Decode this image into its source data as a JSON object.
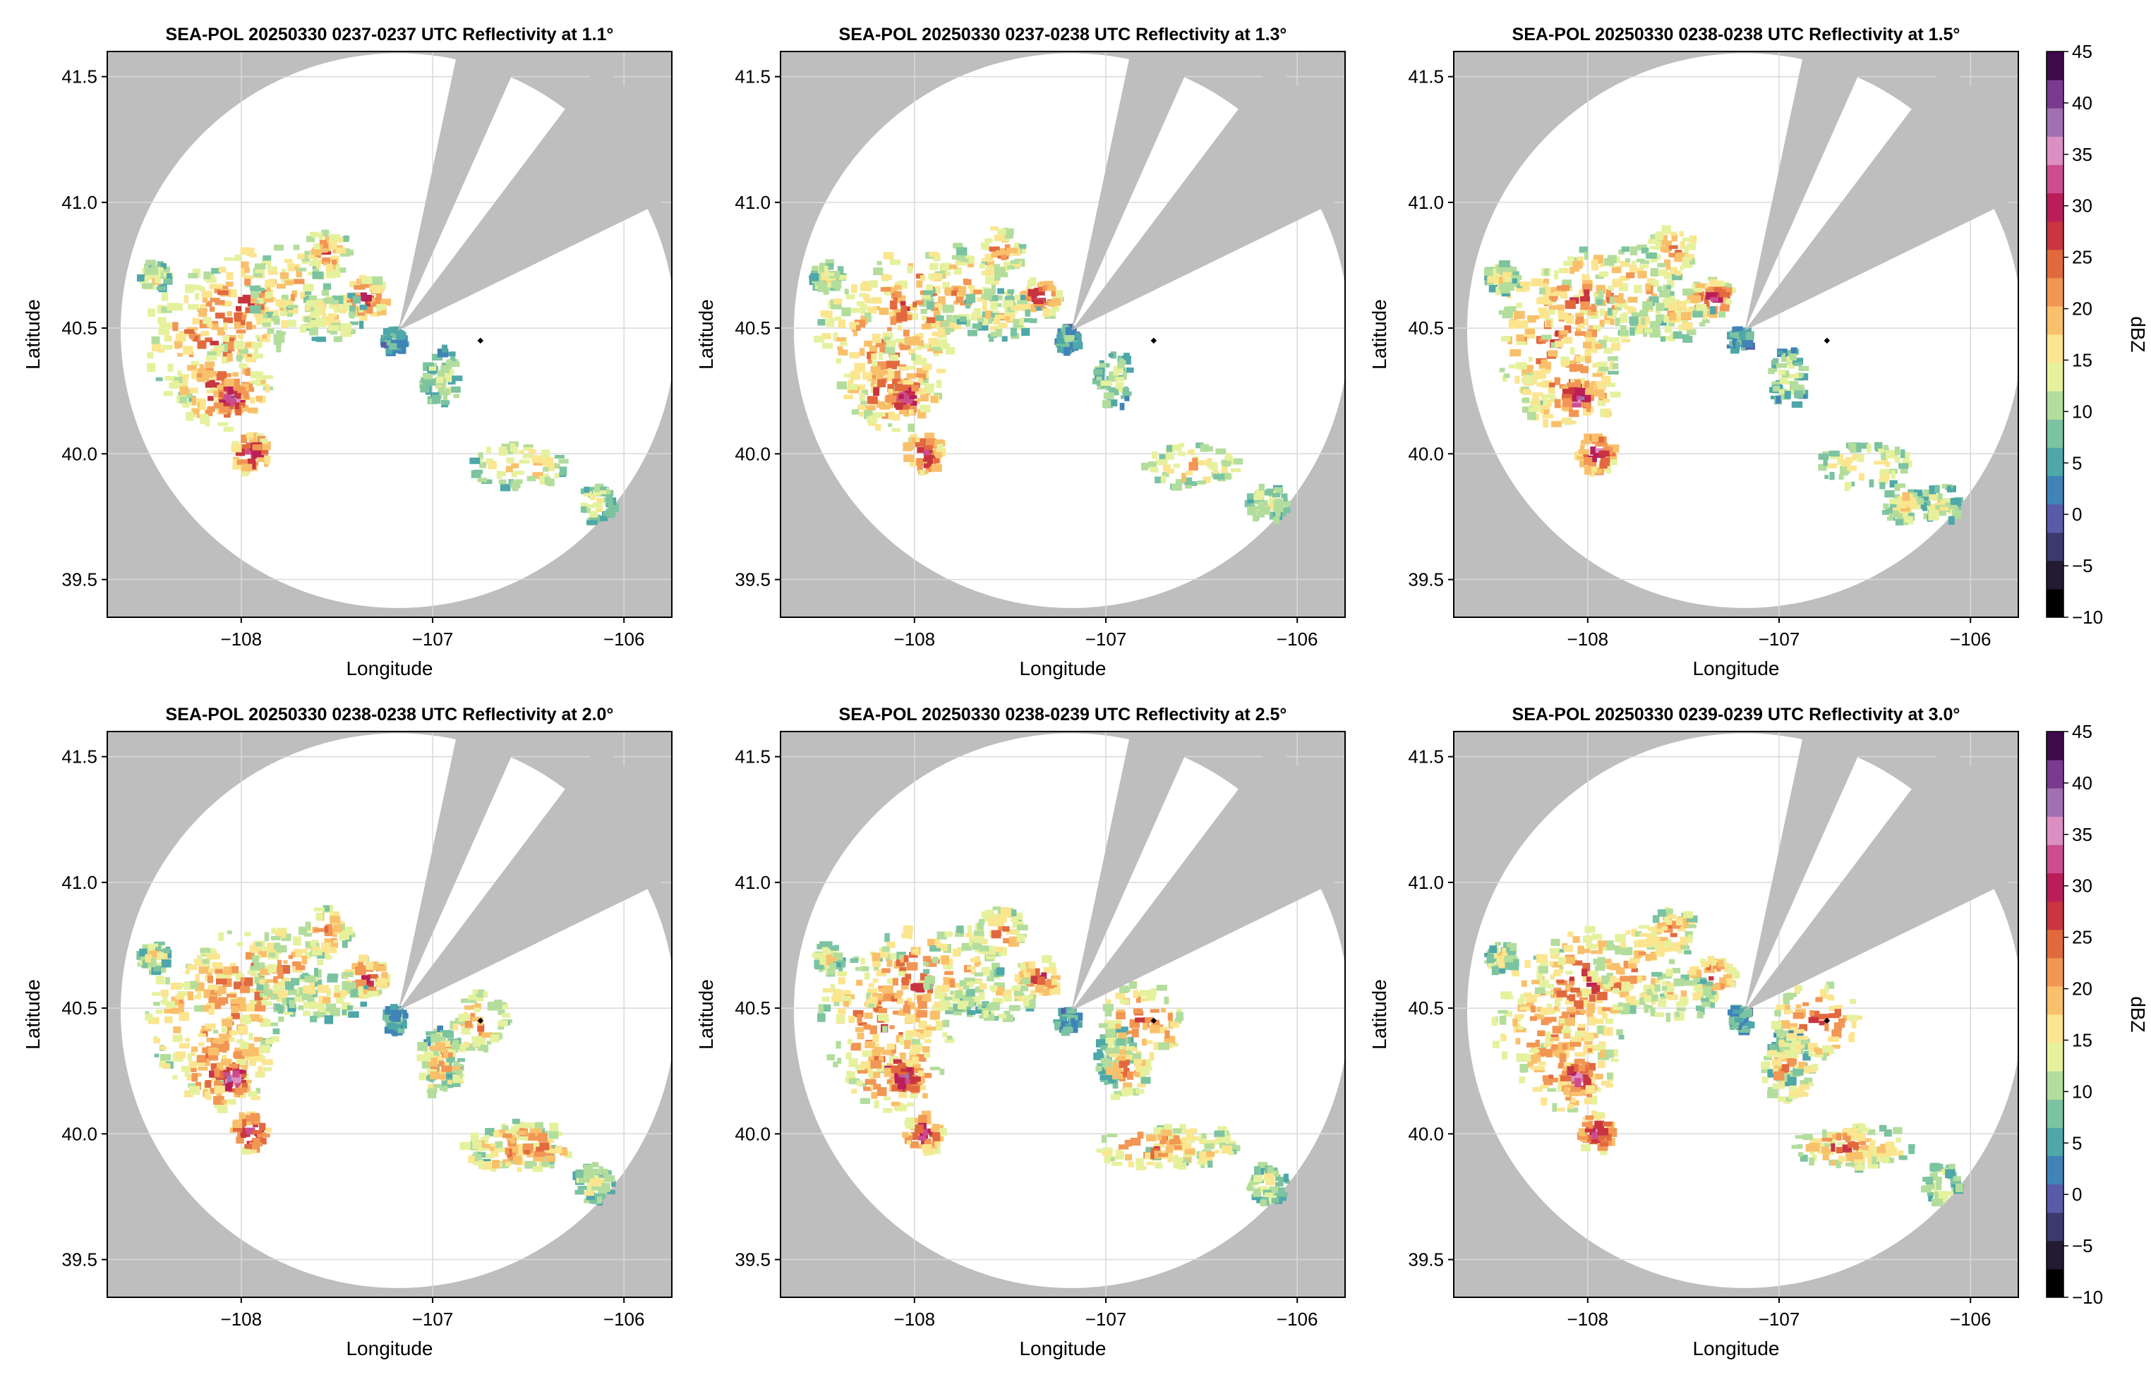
{
  "figure": {
    "colorbar_label": "dBZ",
    "colorbar_ticks": [
      -10,
      -5,
      0,
      5,
      10,
      15,
      20,
      25,
      30,
      35,
      40,
      45
    ],
    "colorbar_tick_labels": [
      "−10",
      "−5",
      "0",
      "5",
      "10",
      "15",
      "20",
      "25",
      "30",
      "35",
      "40",
      "45"
    ],
    "colors": {
      "outside_range": "#bebebe",
      "background": "#ffffff",
      "gridline": "#d9d9d9",
      "radar_marker": "#000000",
      "colormap": [
        "#000000",
        "#231a33",
        "#3a3a6e",
        "#5a5ba8",
        "#3f83b7",
        "#4ea7a8",
        "#7cc3a0",
        "#b3dd9c",
        "#e6f19d",
        "#fbe58f",
        "#f9c06b",
        "#f29654",
        "#e2693e",
        "#c8353f",
        "#b91e59",
        "#cd4c8f",
        "#dc8fc4",
        "#a26fb3",
        "#7a3a90",
        "#3e0a4b"
      ]
    }
  },
  "chart_data": [
    {
      "type": "heatmap",
      "title": "SEA-POL 20250330 0237-0237 UTC Reflectivity at 1.1°",
      "xlabel": "Longitude",
      "ylabel": "Latitude",
      "xlim": [
        -108.7,
        -105.75
      ],
      "ylim": [
        39.35,
        41.6
      ],
      "xticks": [
        -108,
        -107,
        -106
      ],
      "xtick_labels": [
        "−108",
        "−107",
        "−106"
      ],
      "yticks": [
        39.5,
        40.0,
        40.5,
        41.0,
        41.5
      ],
      "ytick_labels": [
        "39.5",
        "40.0",
        "40.5",
        "41.0",
        "41.5"
      ],
      "grid": true,
      "colorbar": false,
      "radar_center": [
        -107.18,
        40.49
      ],
      "range_radius_deg": 1.45,
      "blocked_sectors_deg": [
        [
          12,
          24
        ],
        [
          37,
          64
        ]
      ],
      "marker": [
        -106.75,
        40.45
      ],
      "value_range": [
        -10,
        45
      ]
    },
    {
      "type": "heatmap",
      "title": "SEA-POL 20250330 0237-0238 UTC Reflectivity at 1.3°",
      "xlabel": "Longitude",
      "ylabel": "Latitude",
      "xlim": [
        -108.7,
        -105.75
      ],
      "ylim": [
        39.35,
        41.6
      ],
      "xticks": [
        -108,
        -107,
        -106
      ],
      "xtick_labels": [
        "−108",
        "−107",
        "−106"
      ],
      "yticks": [
        39.5,
        40.0,
        40.5,
        41.0,
        41.5
      ],
      "ytick_labels": [
        "39.5",
        "40.0",
        "40.5",
        "41.0",
        "41.5"
      ],
      "grid": true,
      "colorbar": false,
      "radar_center": [
        -107.18,
        40.49
      ],
      "range_radius_deg": 1.45,
      "blocked_sectors_deg": [
        [
          12,
          24
        ],
        [
          37,
          64
        ]
      ],
      "marker": [
        -106.75,
        40.45
      ],
      "value_range": [
        -10,
        45
      ]
    },
    {
      "type": "heatmap",
      "title": "SEA-POL 20250330 0238-0238 UTC Reflectivity at 1.5°",
      "xlabel": "Longitude",
      "ylabel": "Latitude",
      "xlim": [
        -108.7,
        -105.75
      ],
      "ylim": [
        39.35,
        41.6
      ],
      "xticks": [
        -108,
        -107,
        -106
      ],
      "xtick_labels": [
        "−108",
        "−107",
        "−106"
      ],
      "yticks": [
        39.5,
        40.0,
        40.5,
        41.0,
        41.5
      ],
      "ytick_labels": [
        "39.5",
        "40.0",
        "40.5",
        "41.0",
        "41.5"
      ],
      "grid": true,
      "colorbar": true,
      "radar_center": [
        -107.18,
        40.49
      ],
      "range_radius_deg": 1.45,
      "blocked_sectors_deg": [
        [
          12,
          24
        ],
        [
          37,
          64
        ]
      ],
      "marker": [
        -106.75,
        40.45
      ],
      "value_range": [
        -10,
        45
      ]
    },
    {
      "type": "heatmap",
      "title": "SEA-POL 20250330 0238-0238 UTC Reflectivity at 2.0°",
      "xlabel": "Longitude",
      "ylabel": "Latitude",
      "xlim": [
        -108.7,
        -105.75
      ],
      "ylim": [
        39.35,
        41.6
      ],
      "xticks": [
        -108,
        -107,
        -106
      ],
      "xtick_labels": [
        "−108",
        "−107",
        "−106"
      ],
      "yticks": [
        39.5,
        40.0,
        40.5,
        41.0,
        41.5
      ],
      "ytick_labels": [
        "39.5",
        "40.0",
        "40.5",
        "41.0",
        "41.5"
      ],
      "grid": true,
      "colorbar": false,
      "radar_center": [
        -107.18,
        40.49
      ],
      "range_radius_deg": 1.45,
      "blocked_sectors_deg": [
        [
          12,
          24
        ],
        [
          37,
          64
        ]
      ],
      "marker": [
        -106.75,
        40.45
      ],
      "value_range": [
        -10,
        45
      ]
    },
    {
      "type": "heatmap",
      "title": "SEA-POL 20250330 0238-0239 UTC Reflectivity at 2.5°",
      "xlabel": "Longitude",
      "ylabel": "Latitude",
      "xlim": [
        -108.7,
        -105.75
      ],
      "ylim": [
        39.35,
        41.6
      ],
      "xticks": [
        -108,
        -107,
        -106
      ],
      "xtick_labels": [
        "−108",
        "−107",
        "−106"
      ],
      "yticks": [
        39.5,
        40.0,
        40.5,
        41.0,
        41.5
      ],
      "ytick_labels": [
        "39.5",
        "40.0",
        "40.5",
        "41.0",
        "41.5"
      ],
      "grid": true,
      "colorbar": false,
      "radar_center": [
        -107.18,
        40.49
      ],
      "range_radius_deg": 1.45,
      "blocked_sectors_deg": [
        [
          12,
          24
        ],
        [
          37,
          64
        ]
      ],
      "marker": [
        -106.75,
        40.45
      ],
      "value_range": [
        -10,
        45
      ]
    },
    {
      "type": "heatmap",
      "title": "SEA-POL 20250330 0239-0239 UTC Reflectivity at 3.0°",
      "xlabel": "Longitude",
      "ylabel": "Latitude",
      "xlim": [
        -108.7,
        -105.75
      ],
      "ylim": [
        39.35,
        41.6
      ],
      "xticks": [
        -108,
        -107,
        -106
      ],
      "xtick_labels": [
        "−108",
        "−107",
        "−106"
      ],
      "yticks": [
        39.5,
        40.0,
        40.5,
        41.0,
        41.5
      ],
      "ytick_labels": [
        "39.5",
        "40.0",
        "40.5",
        "41.0",
        "41.5"
      ],
      "grid": true,
      "colorbar": true,
      "radar_center": [
        -107.18,
        40.49
      ],
      "range_radius_deg": 1.45,
      "blocked_sectors_deg": [
        [
          12,
          24
        ],
        [
          37,
          64
        ]
      ],
      "marker": [
        -106.75,
        40.45
      ],
      "value_range": [
        -10,
        45
      ]
    }
  ]
}
